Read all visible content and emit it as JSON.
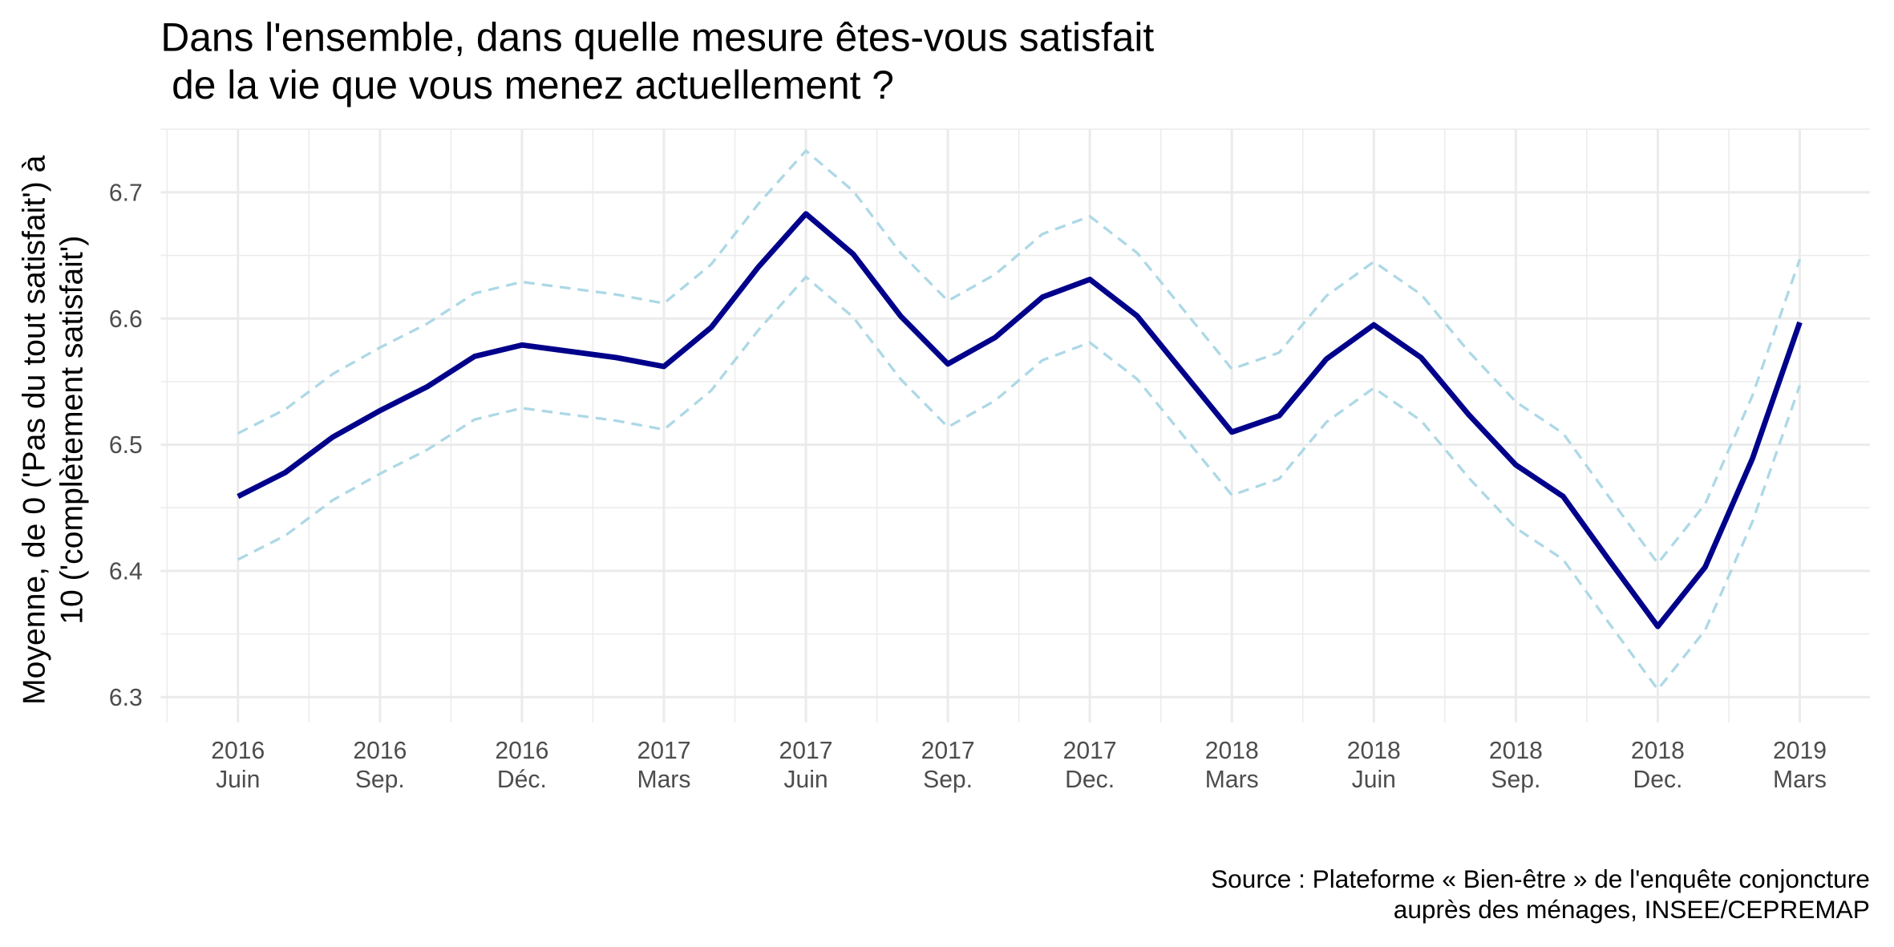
{
  "chart_data": {
    "type": "line",
    "title": "Dans l'ensemble, dans quelle mesure êtes-vous satisfait\n de la vie que vous menez actuellement ?",
    "y_label": "Moyenne, de 0 ('Pas du tout satisfait') à\n10 ('complètement satisfait')",
    "caption": "Source : Plateforme « Bien-être » de l'enquête conjoncture\nauprès des ménages, INSEE/CEPREMAP",
    "categories": [
      "2016\nJuin",
      null,
      null,
      "2016\nSep.",
      null,
      null,
      "2016\nDéc.",
      null,
      null,
      "2017\nMars",
      null,
      null,
      "2017\nJuin",
      null,
      null,
      "2017\nSep.",
      null,
      null,
      "2017\nDec.",
      null,
      null,
      "2018\nMars",
      null,
      null,
      "2018\nJuin",
      null,
      null,
      "2018\nSep.",
      null,
      null,
      "2018\nDec.",
      null,
      null,
      "2019\nMars"
    ],
    "series": [
      {
        "color": "#add8e6",
        "dashed": true,
        "values": [
          6.509,
          6.528,
          6.556,
          6.577,
          6.596,
          6.62,
          6.629,
          6.624,
          6.619,
          6.612,
          6.643,
          6.691,
          6.733,
          6.701,
          6.652,
          6.614,
          6.635,
          6.667,
          6.681,
          6.652,
          6.606,
          6.56,
          6.573,
          6.618,
          6.645,
          6.619,
          6.574,
          6.534,
          6.509,
          6.457,
          6.406,
          6.453,
          6.539,
          6.647
        ]
      },
      {
        "color": "#add8e6",
        "dashed": true,
        "values": [
          6.409,
          6.428,
          6.456,
          6.477,
          6.496,
          6.52,
          6.529,
          6.524,
          6.519,
          6.512,
          6.543,
          6.591,
          6.633,
          6.601,
          6.552,
          6.514,
          6.535,
          6.567,
          6.581,
          6.552,
          6.506,
          6.46,
          6.473,
          6.518,
          6.545,
          6.519,
          6.474,
          6.434,
          6.409,
          6.357,
          6.306,
          6.353,
          6.439,
          6.547
        ]
      },
      {
        "color": "#00008b",
        "dashed": false,
        "values": [
          6.459,
          6.478,
          6.506,
          6.527,
          6.546,
          6.57,
          6.579,
          6.574,
          6.569,
          6.562,
          6.593,
          6.641,
          6.683,
          6.651,
          6.602,
          6.564,
          6.585,
          6.617,
          6.631,
          6.602,
          6.556,
          6.51,
          6.523,
          6.568,
          6.595,
          6.569,
          6.524,
          6.484,
          6.459,
          6.407,
          6.356,
          6.403,
          6.489,
          6.597
        ]
      }
    ],
    "ylim": [
      6.28,
      6.75
    ],
    "yticks": [
      6.3,
      6.4,
      6.5,
      6.6,
      6.7
    ],
    "grid": true
  }
}
